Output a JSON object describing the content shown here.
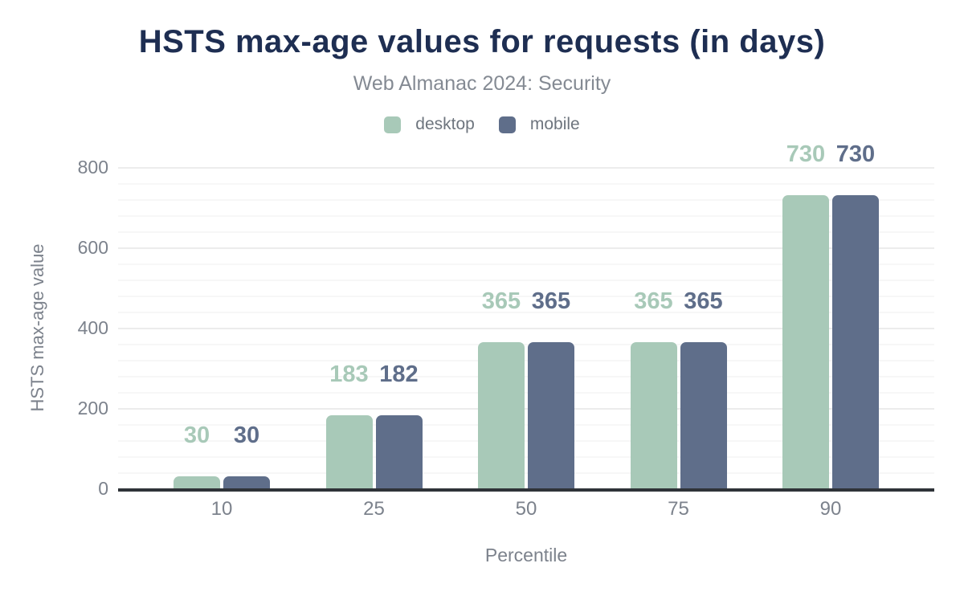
{
  "title": "HSTS max-age values for requests (in days)",
  "subtitle": "Web Almanac 2024: Security",
  "legend": {
    "items": [
      {
        "label": "desktop",
        "color": "#a8c9b8"
      },
      {
        "label": "mobile",
        "color": "#5f6e8a"
      }
    ]
  },
  "axes": {
    "x_title": "Percentile",
    "y_title": "HSTS max-age value"
  },
  "chart_data": {
    "type": "bar",
    "title": "HSTS max-age values for requests (in days)",
    "subtitle": "Web Almanac 2024: Security",
    "categories": [
      "10",
      "25",
      "50",
      "75",
      "90"
    ],
    "series": [
      {
        "name": "desktop",
        "color": "#a8c9b8",
        "values": [
          30,
          183,
          365,
          365,
          730
        ]
      },
      {
        "name": "mobile",
        "color": "#5f6e8a",
        "values": [
          30,
          182,
          365,
          365,
          730
        ]
      }
    ],
    "xlabel": "Percentile",
    "ylabel": "HSTS max-age value",
    "ylim": [
      0,
      800
    ],
    "yticks": [
      0,
      200,
      400,
      600,
      800
    ],
    "minor_gridlines_per_major": 5,
    "grid": true,
    "legend_position": "top",
    "data_labels": true
  }
}
